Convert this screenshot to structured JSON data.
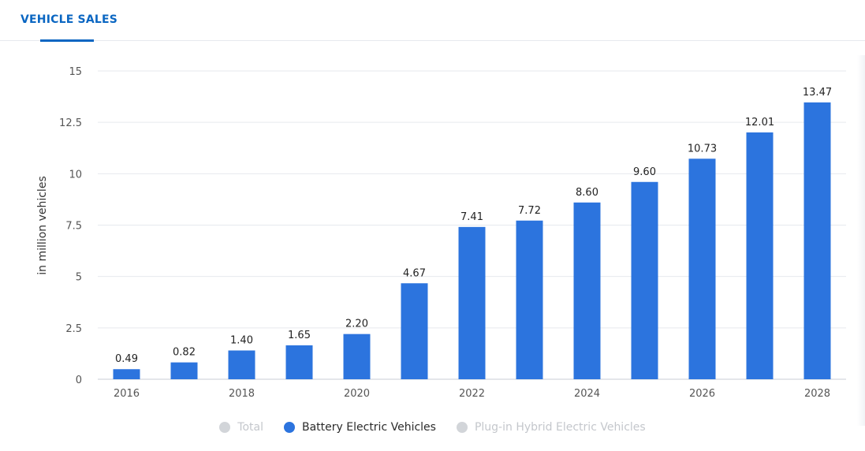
{
  "tabs": [
    {
      "label": "VEHICLE SALES"
    }
  ],
  "colors": {
    "accent": "#0a66c2",
    "bar": "#2c74de",
    "grid": "#e6e9ee",
    "inactive": "#d2d5d9"
  },
  "chart_data": {
    "type": "bar",
    "categories": [
      "2016",
      "2017",
      "2018",
      "2019",
      "2020",
      "2021",
      "2022",
      "2023",
      "2024",
      "2025",
      "2026",
      "2027",
      "2028"
    ],
    "x_tick_labels": [
      "2016",
      "2018",
      "2020",
      "2022",
      "2024",
      "2026",
      "2028"
    ],
    "series": [
      {
        "name": "Battery Electric Vehicles",
        "values": [
          0.49,
          0.82,
          1.4,
          1.65,
          2.2,
          4.67,
          7.41,
          7.72,
          8.6,
          9.6,
          10.73,
          12.01,
          13.47
        ],
        "labels": [
          "0.49",
          "0.82",
          "1.40",
          "1.65",
          "2.20",
          "4.67",
          "7.41",
          "7.72",
          "8.60",
          "9.60",
          "10.73",
          "12.01",
          "13.47"
        ]
      }
    ],
    "ylabel": "in million vehicles",
    "ylim": [
      0,
      15
    ],
    "y_ticks": [
      0,
      2.5,
      5,
      7.5,
      10,
      12.5,
      15
    ],
    "y_tick_labels": [
      "0",
      "2.5",
      "5",
      "7.5",
      "10",
      "12.5",
      "15"
    ],
    "grid": true,
    "legend_placement": "bottom-center"
  },
  "legend": [
    {
      "label": "Total",
      "active": false
    },
    {
      "label": "Battery Electric Vehicles",
      "active": true
    },
    {
      "label": "Plug-in Hybrid Electric Vehicles",
      "active": false
    }
  ]
}
